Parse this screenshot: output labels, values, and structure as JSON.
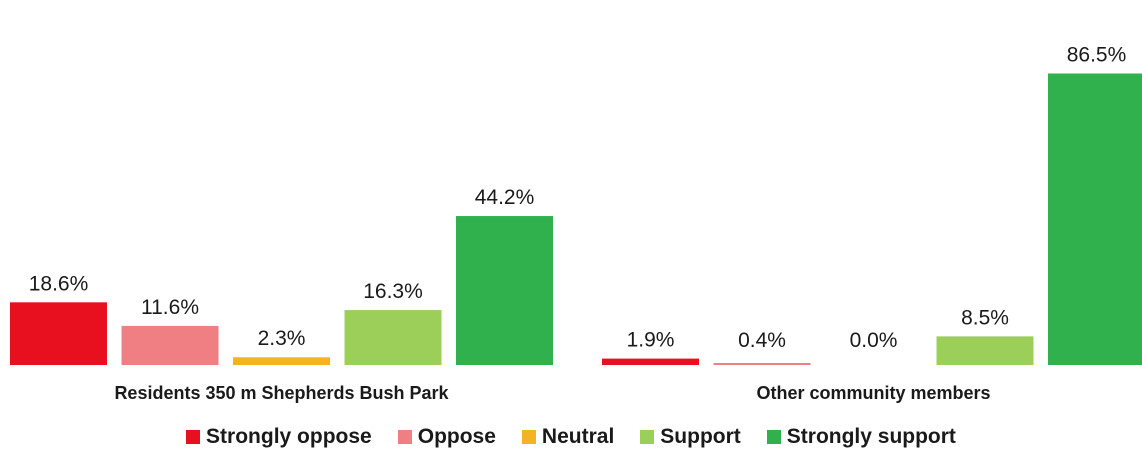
{
  "chart_data": {
    "type": "bar",
    "categories": [
      "Residents 350 m Shepherds Bush Park",
      "Other community members"
    ],
    "series": [
      {
        "name": "Strongly oppose",
        "color": "#e8101e",
        "values": [
          18.6,
          1.9
        ],
        "labels": [
          "18.6%",
          "1.9%"
        ]
      },
      {
        "name": "Oppose",
        "color": "#f07f84",
        "values": [
          11.6,
          0.4
        ],
        "labels": [
          "11.6%",
          "0.4%"
        ]
      },
      {
        "name": "Neutral",
        "color": "#f3b323",
        "values": [
          2.3,
          0.0
        ],
        "labels": [
          "2.3%",
          "0.0%"
        ]
      },
      {
        "name": "Support",
        "color": "#9ccf5a",
        "values": [
          16.3,
          8.5
        ],
        "labels": [
          "16.3%",
          "8.5%"
        ]
      },
      {
        "name": "Strongly support",
        "color": "#30b14e",
        "values": [
          44.2,
          86.5
        ],
        "labels": [
          "44.2%",
          "86.5%"
        ]
      }
    ],
    "ylim": [
      0,
      100
    ],
    "legend_position": "bottom",
    "grid": false
  }
}
